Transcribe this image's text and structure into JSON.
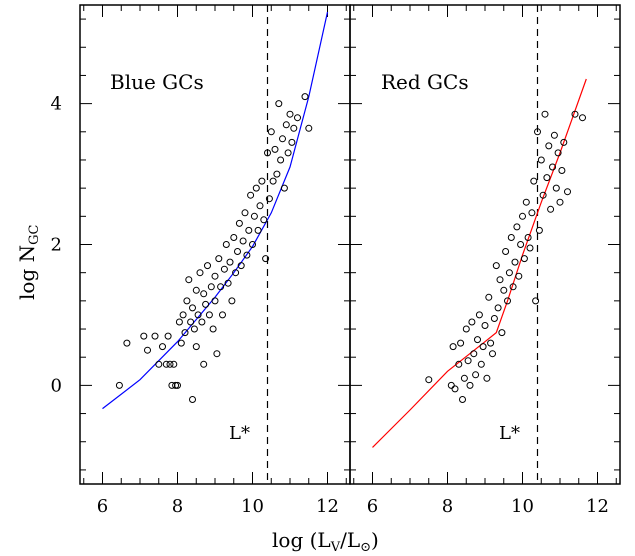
{
  "axis": {
    "ylabel_main": "log N",
    "ylabel_sub": "GC",
    "xlabel_pre": "log (L",
    "xlabel_sub1": "V",
    "xlabel_mid": "/L",
    "xlabel_post": ")",
    "xlabel_sun": "⊙"
  },
  "chart_data": [
    {
      "type": "scatter",
      "title": "Blue GCs",
      "marker_label": "L*",
      "xlim": [
        5.4,
        12.6
      ],
      "ylim": [
        -1.4,
        5.4
      ],
      "xticks": [
        6,
        8,
        10,
        12
      ],
      "yticks": [
        0,
        2,
        4
      ],
      "vline_x": 10.4,
      "fit_color": "#0000ff",
      "fit": [
        [
          6.0,
          -0.33
        ],
        [
          7.0,
          0.08
        ],
        [
          8.0,
          0.62
        ],
        [
          9.0,
          1.25
        ],
        [
          9.5,
          1.6
        ],
        [
          10.0,
          1.97
        ],
        [
          10.5,
          2.45
        ],
        [
          11.0,
          3.1
        ],
        [
          11.5,
          4.1
        ],
        [
          12.0,
          5.3
        ]
      ],
      "points": [
        [
          6.45,
          0.0
        ],
        [
          6.65,
          0.6
        ],
        [
          7.1,
          0.7
        ],
        [
          7.2,
          0.5
        ],
        [
          7.4,
          0.7
        ],
        [
          7.5,
          0.3
        ],
        [
          7.6,
          0.55
        ],
        [
          7.7,
          0.3
        ],
        [
          7.75,
          0.7
        ],
        [
          7.8,
          0.3
        ],
        [
          7.85,
          0.0
        ],
        [
          7.9,
          0.3
        ],
        [
          7.95,
          0.0
        ],
        [
          8.0,
          0.0
        ],
        [
          8.05,
          0.9
        ],
        [
          8.1,
          0.6
        ],
        [
          8.15,
          1.0
        ],
        [
          8.2,
          0.75
        ],
        [
          8.25,
          1.2
        ],
        [
          8.3,
          1.5
        ],
        [
          8.35,
          0.9
        ],
        [
          8.4,
          -0.2
        ],
        [
          8.4,
          1.1
        ],
        [
          8.45,
          0.8
        ],
        [
          8.5,
          1.35
        ],
        [
          8.5,
          0.55
        ],
        [
          8.55,
          1.0
        ],
        [
          8.6,
          1.6
        ],
        [
          8.65,
          0.9
        ],
        [
          8.7,
          1.3
        ],
        [
          8.7,
          0.3
        ],
        [
          8.75,
          1.15
        ],
        [
          8.8,
          1.7
        ],
        [
          8.85,
          1.0
        ],
        [
          8.9,
          1.4
        ],
        [
          8.95,
          0.8
        ],
        [
          9.0,
          1.55
        ],
        [
          9.0,
          1.2
        ],
        [
          9.05,
          0.45
        ],
        [
          9.1,
          1.8
        ],
        [
          9.15,
          1.4
        ],
        [
          9.2,
          1.0
        ],
        [
          9.25,
          1.65
        ],
        [
          9.3,
          2.0
        ],
        [
          9.35,
          1.45
        ],
        [
          9.4,
          1.75
        ],
        [
          9.45,
          1.2
        ],
        [
          9.5,
          2.1
        ],
        [
          9.55,
          1.6
        ],
        [
          9.6,
          1.9
        ],
        [
          9.65,
          2.3
        ],
        [
          9.7,
          1.7
        ],
        [
          9.75,
          2.05
        ],
        [
          9.8,
          2.45
        ],
        [
          9.85,
          1.85
        ],
        [
          9.9,
          2.2
        ],
        [
          9.95,
          2.7
        ],
        [
          10.0,
          2.0
        ],
        [
          10.05,
          2.4
        ],
        [
          10.1,
          2.8
        ],
        [
          10.15,
          2.2
        ],
        [
          10.2,
          2.55
        ],
        [
          10.25,
          2.9
        ],
        [
          10.3,
          2.35
        ],
        [
          10.35,
          1.8
        ],
        [
          10.4,
          3.3
        ],
        [
          10.45,
          2.65
        ],
        [
          10.5,
          3.6
        ],
        [
          10.55,
          2.9
        ],
        [
          10.6,
          3.35
        ],
        [
          10.65,
          3.0
        ],
        [
          10.7,
          4.0
        ],
        [
          10.75,
          3.2
        ],
        [
          10.8,
          3.5
        ],
        [
          10.85,
          2.8
        ],
        [
          10.9,
          3.7
        ],
        [
          10.95,
          3.3
        ],
        [
          11.0,
          3.85
        ],
        [
          11.05,
          3.45
        ],
        [
          11.1,
          3.65
        ],
        [
          11.2,
          3.8
        ],
        [
          11.4,
          4.1
        ],
        [
          11.5,
          3.65
        ]
      ]
    },
    {
      "type": "scatter",
      "title": "Red GCs",
      "marker_label": "L*",
      "xlim": [
        5.4,
        12.6
      ],
      "ylim": [
        -1.4,
        5.4
      ],
      "xticks": [
        6,
        8,
        10,
        12
      ],
      "yticks": [
        0,
        2,
        4
      ],
      "vline_x": 10.4,
      "fit_color": "#ff0000",
      "fit": [
        [
          6.0,
          -0.88
        ],
        [
          7.0,
          -0.35
        ],
        [
          8.0,
          0.2
        ],
        [
          9.0,
          0.62
        ],
        [
          9.3,
          0.75
        ],
        [
          9.6,
          1.2
        ],
        [
          10.0,
          1.85
        ],
        [
          10.5,
          2.6
        ],
        [
          11.0,
          3.3
        ],
        [
          11.7,
          4.35
        ]
      ],
      "points": [
        [
          7.5,
          0.08
        ],
        [
          8.1,
          0.0
        ],
        [
          8.15,
          0.55
        ],
        [
          8.2,
          -0.05
        ],
        [
          8.3,
          0.3
        ],
        [
          8.35,
          0.6
        ],
        [
          8.4,
          -0.2
        ],
        [
          8.45,
          0.1
        ],
        [
          8.5,
          0.8
        ],
        [
          8.55,
          0.35
        ],
        [
          8.6,
          0.0
        ],
        [
          8.65,
          0.9
        ],
        [
          8.7,
          0.45
        ],
        [
          8.75,
          0.15
        ],
        [
          8.8,
          0.65
        ],
        [
          8.85,
          1.0
        ],
        [
          8.9,
          0.3
        ],
        [
          8.95,
          0.55
        ],
        [
          9.0,
          0.85
        ],
        [
          9.05,
          0.1
        ],
        [
          9.1,
          1.25
        ],
        [
          9.15,
          0.6
        ],
        [
          9.2,
          0.45
        ],
        [
          9.25,
          0.95
        ],
        [
          9.3,
          1.7
        ],
        [
          9.35,
          1.1
        ],
        [
          9.4,
          1.5
        ],
        [
          9.45,
          0.75
        ],
        [
          9.5,
          1.35
        ],
        [
          9.55,
          1.9
        ],
        [
          9.6,
          1.2
        ],
        [
          9.65,
          1.6
        ],
        [
          9.7,
          2.1
        ],
        [
          9.75,
          1.4
        ],
        [
          9.8,
          1.75
        ],
        [
          9.85,
          2.25
        ],
        [
          9.9,
          1.55
        ],
        [
          9.95,
          2.0
        ],
        [
          10.0,
          2.4
        ],
        [
          10.05,
          1.8
        ],
        [
          10.1,
          2.6
        ],
        [
          10.15,
          2.1
        ],
        [
          10.2,
          1.95
        ],
        [
          10.25,
          2.45
        ],
        [
          10.3,
          2.9
        ],
        [
          10.35,
          1.2
        ],
        [
          10.4,
          3.6
        ],
        [
          10.45,
          2.2
        ],
        [
          10.5,
          3.2
        ],
        [
          10.55,
          2.7
        ],
        [
          10.6,
          3.85
        ],
        [
          10.65,
          2.95
        ],
        [
          10.7,
          3.4
        ],
        [
          10.75,
          2.5
        ],
        [
          10.8,
          3.1
        ],
        [
          10.85,
          3.55
        ],
        [
          10.9,
          2.8
        ],
        [
          10.95,
          3.3
        ],
        [
          11.0,
          2.6
        ],
        [
          11.05,
          3.05
        ],
        [
          11.1,
          3.45
        ],
        [
          11.2,
          2.75
        ],
        [
          11.4,
          3.85
        ],
        [
          11.6,
          3.8
        ]
      ]
    }
  ]
}
